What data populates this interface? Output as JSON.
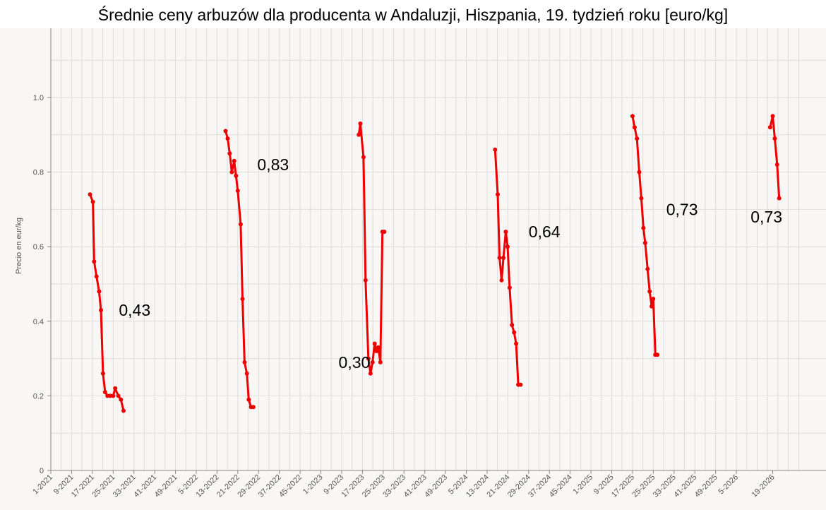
{
  "chart_data": {
    "type": "line",
    "title": "Średnie ceny arbuzów dla producenta w Andaluzji, Hiszpania, 19. tydzień roku [euro/kg]",
    "xlabel": "",
    "ylabel": "Precio en eur/kg",
    "ylim": [
      0,
      1.0
    ],
    "yticks": [
      "0",
      "0.2",
      "0.4",
      "0.6",
      "0.8",
      "1.0"
    ],
    "yticks_values": [
      0,
      0.2,
      0.4,
      0.6,
      0.8,
      1.0
    ],
    "xticks": [
      "1-2021",
      "9-2021",
      "17-2021",
      "25-2021",
      "33-2021",
      "41-2021",
      "49-2021",
      "5-2022",
      "13-2022",
      "21-2022",
      "29-2022",
      "37-2022",
      "45-2022",
      "1-2023",
      "9-2023",
      "17-2023",
      "25-2023",
      "33-2023",
      "41-2023",
      "49-2023",
      "5-2024",
      "13-2024",
      "21-2024",
      "29-2024",
      "37-2024",
      "45-2024",
      "1-2025",
      "9-2025",
      "17-2025",
      "25-2025",
      "33-2025",
      "41-2025",
      "49-2025",
      "5-2026",
      "19-2026"
    ],
    "grid": true,
    "series_color": "#ee0000",
    "series": [
      {
        "segments": [
          {
            "x": [
              16.1,
              17.2,
              17.7,
              18.6,
              19.6,
              20.3,
              21.1,
              21.9,
              22.8,
              23.9,
              25.0,
              25.8,
              27.0,
              28.0,
              29.0
            ],
            "y": [
              0.74,
              0.72,
              0.56,
              0.52,
              0.48,
              0.43,
              0.26,
              0.21,
              0.2,
              0.2,
              0.2,
              0.22,
              0.2,
              0.19,
              0.16
            ]
          },
          {
            "x": [
              68.3,
              69.1,
              69.9,
              70.7,
              71.6,
              72.3,
              73.0,
              74.1,
              74.8,
              75.6,
              76.5,
              77.2,
              78.1,
              79.0
            ],
            "y": [
              0.91,
              0.89,
              0.85,
              0.8,
              0.83,
              0.79,
              0.75,
              0.66,
              0.46,
              0.29,
              0.26,
              0.19,
              0.17,
              0.17
            ]
          },
          {
            "x": [
              119.6,
              120.2,
              121.4,
              122.2,
              123.3,
              124.1,
              124.9,
              125.7,
              126.4,
              127.1,
              127.9,
              128.7,
              129.4
            ],
            "y": [
              0.9,
              0.93,
              0.84,
              0.51,
              0.3,
              0.26,
              0.29,
              0.34,
              0.32,
              0.33,
              0.29,
              0.64,
              0.64
            ]
          },
          {
            "x": [
              172.1,
              173.1,
              173.8,
              174.6,
              175.3,
              176.2,
              176.9,
              177.7,
              178.6,
              179.4,
              180.2,
              181.0,
              181.9
            ],
            "y": [
              0.86,
              0.74,
              0.57,
              0.51,
              0.57,
              0.64,
              0.6,
              0.49,
              0.39,
              0.37,
              0.34,
              0.23,
              0.23
            ]
          },
          {
            "x": [
              225.0,
              225.8,
              226.7,
              227.6,
              228.4,
              229.2,
              229.9,
              230.8,
              231.6,
              232.4,
              233.0,
              233.8,
              234.6
            ],
            "y": [
              0.95,
              0.92,
              0.89,
              0.8,
              0.73,
              0.65,
              0.61,
              0.54,
              0.48,
              0.44,
              0.46,
              0.31,
              0.31
            ]
          },
          {
            "x": [
              278.0,
              279.0,
              279.8,
              280.7,
              281.5
            ],
            "y": [
              0.92,
              0.95,
              0.89,
              0.82,
              0.73
            ]
          }
        ]
      }
    ],
    "annotations": [
      {
        "text": "0,43",
        "x": 27.2,
        "y": 0.43
      },
      {
        "text": "0,83",
        "x": 80.5,
        "y": 0.82
      },
      {
        "text": "0,30",
        "x": 111.8,
        "y": 0.29
      },
      {
        "text": "0,64",
        "x": 185.0,
        "y": 0.64
      },
      {
        "text": "0,73",
        "x": 238.0,
        "y": 0.7
      },
      {
        "text": "0,73",
        "x": 270.5,
        "y": 0.68
      }
    ]
  }
}
